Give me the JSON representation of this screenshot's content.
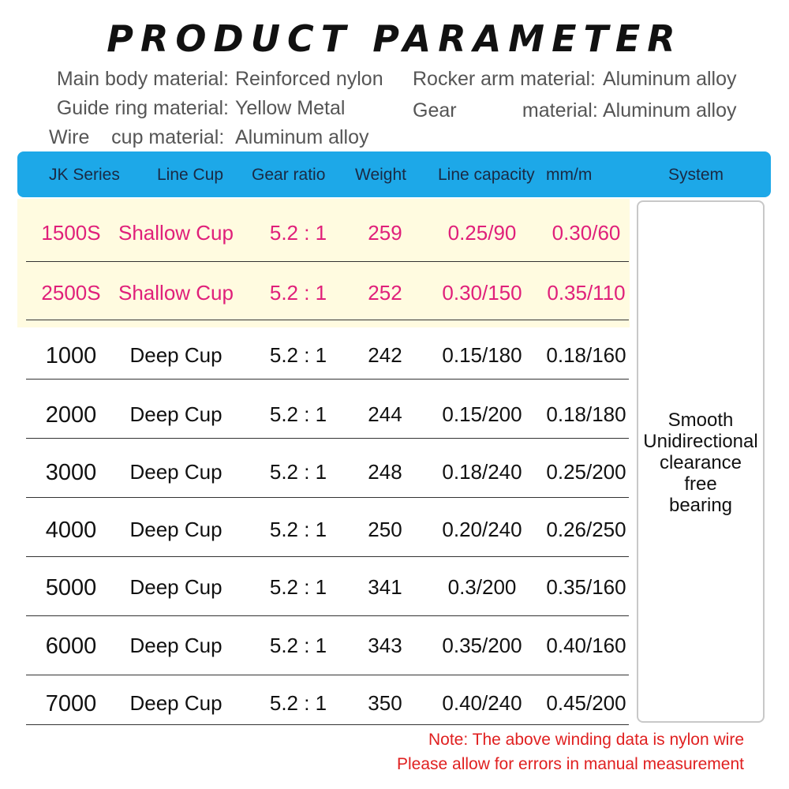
{
  "title": "PRODUCT PARAMETER",
  "materials": {
    "main_body": {
      "label": "Main body material:",
      "value": "Reinforced nylon"
    },
    "guide_ring": {
      "label": "Guide ring material:",
      "value": "Yellow Metal"
    },
    "wire_cup": {
      "label": "Wire    cup material:",
      "value": "Aluminum alloy"
    },
    "rocker_arm": {
      "label": "Rocker arm material:",
      "value": "Aluminum alloy"
    },
    "gear": {
      "label": "Gear            material:",
      "value": "Aluminum alloy"
    }
  },
  "table": {
    "headers": [
      "JK  Series",
      "Line Cup",
      "Gear  ratio",
      "Weight",
      "Line capacity",
      "mm/m",
      "System"
    ],
    "rows": [
      {
        "series": "1500S",
        "cup": "Shallow Cup",
        "ratio": "5.2 : 1",
        "weight": "259",
        "cap1": "0.25/90",
        "cap2": "0.30/60",
        "highlight": true
      },
      {
        "series": "2500S",
        "cup": "Shallow Cup",
        "ratio": "5.2 : 1",
        "weight": "252",
        "cap1": "0.30/150",
        "cap2": "0.35/110",
        "highlight": true
      },
      {
        "series": "1000",
        "cup": "Deep Cup",
        "ratio": "5.2 : 1",
        "weight": "242",
        "cap1": "0.15/180",
        "cap2": "0.18/160",
        "highlight": false
      },
      {
        "series": "2000",
        "cup": "Deep Cup",
        "ratio": "5.2 : 1",
        "weight": "244",
        "cap1": "0.15/200",
        "cap2": "0.18/180",
        "highlight": false
      },
      {
        "series": "3000",
        "cup": "Deep Cup",
        "ratio": "5.2 : 1",
        "weight": "248",
        "cap1": "0.18/240",
        "cap2": "0.25/200",
        "highlight": false
      },
      {
        "series": "4000",
        "cup": "Deep Cup",
        "ratio": "5.2 : 1",
        "weight": "250",
        "cap1": "0.20/240",
        "cap2": "0.26/250",
        "highlight": false
      },
      {
        "series": "5000",
        "cup": "Deep Cup",
        "ratio": "5.2 : 1",
        "weight": "341",
        "cap1": "0.3/200",
        "cap2": "0.35/160",
        "highlight": false
      },
      {
        "series": "6000",
        "cup": "Deep Cup",
        "ratio": "5.2 : 1",
        "weight": "343",
        "cap1": "0.35/200",
        "cap2": "0.40/160",
        "highlight": false
      },
      {
        "series": "7000",
        "cup": "Deep Cup",
        "ratio": "5.2 : 1",
        "weight": "350",
        "cap1": "0.40/240",
        "cap2": "0.45/200",
        "highlight": false
      }
    ],
    "system_lines": [
      "Smooth",
      "Unidirectional",
      "clearance",
      "free",
      "bearing"
    ]
  },
  "notes": [
    "Note: The above winding data is nylon wire",
    "Please allow for errors in manual measurement"
  ],
  "colors": {
    "header": "#1da8e8",
    "highlight_bg": "#fffbe0",
    "pink_text": "#e0207a",
    "note_text": "#e02020"
  }
}
